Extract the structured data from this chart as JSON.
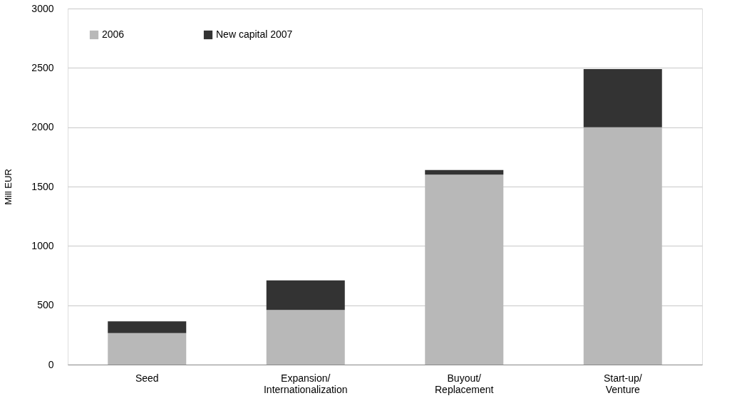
{
  "chart_data": {
    "type": "bar",
    "stacked": true,
    "ylabel": "Mill EUR",
    "categories": [
      "Seed",
      "Expansion/\nInternationalization",
      "Buyout/\nReplacement",
      "Start-up/\nVenture"
    ],
    "series": [
      {
        "name": "2006",
        "color": "#b8b8b8",
        "values": [
          265,
          460,
          1600,
          2000
        ]
      },
      {
        "name": "New capital 2007",
        "color": "#333333",
        "values": [
          100,
          250,
          40,
          490
        ]
      }
    ],
    "ylim": [
      0,
      3000
    ],
    "yticks": [
      0,
      500,
      1000,
      1500,
      2000,
      2500,
      3000
    ],
    "grid": "y",
    "legend": "top left"
  }
}
